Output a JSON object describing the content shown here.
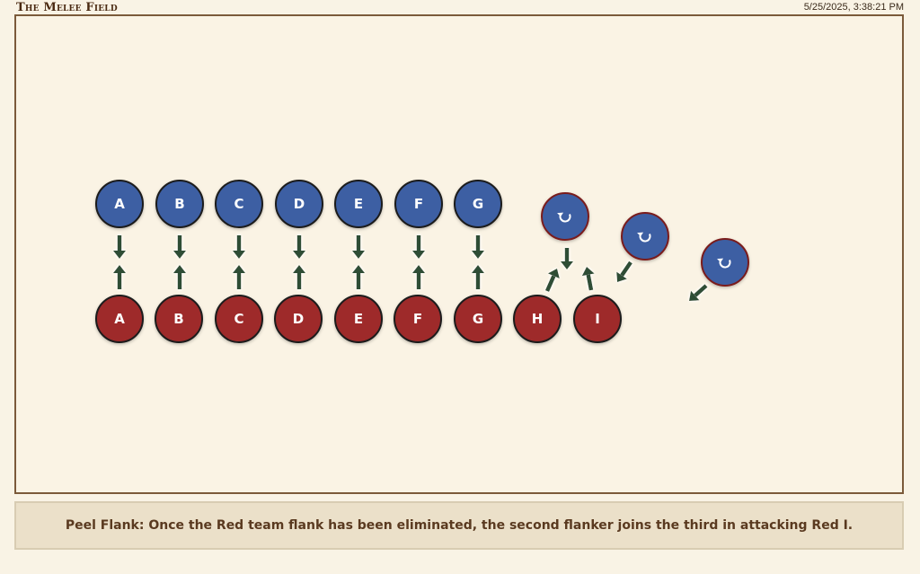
{
  "header": {
    "title": "The Melee Field",
    "timestamp": "5/25/2025, 3:38:21 PM"
  },
  "colors": {
    "blue_team": "#3d5fa3",
    "red_team": "#9e2a2b",
    "arrow": "#2f4d35",
    "field_border": "#7b5a3a"
  },
  "blue_team": {
    "fighters": [
      {
        "label": "A",
        "state": "engaged"
      },
      {
        "label": "B",
        "state": "engaged"
      },
      {
        "label": "C",
        "state": "engaged"
      },
      {
        "label": "D",
        "state": "engaged"
      },
      {
        "label": "E",
        "state": "engaged"
      },
      {
        "label": "F",
        "state": "engaged"
      },
      {
        "label": "G",
        "state": "engaged"
      },
      {
        "label": "",
        "icon": "rotate-icon",
        "state": "flanker"
      },
      {
        "label": "",
        "icon": "rotate-icon",
        "state": "flanker"
      },
      {
        "label": "",
        "icon": "rotate-icon",
        "state": "flanker"
      }
    ]
  },
  "red_team": {
    "fighters": [
      {
        "label": "A"
      },
      {
        "label": "B"
      },
      {
        "label": "C"
      },
      {
        "label": "D"
      },
      {
        "label": "E"
      },
      {
        "label": "F"
      },
      {
        "label": "G"
      },
      {
        "label": "H"
      },
      {
        "label": "I"
      }
    ]
  },
  "caption": {
    "text": "Peel Flank: Once the Red team flank has been eliminated, the second flanker joins the third in attacking Red I."
  }
}
